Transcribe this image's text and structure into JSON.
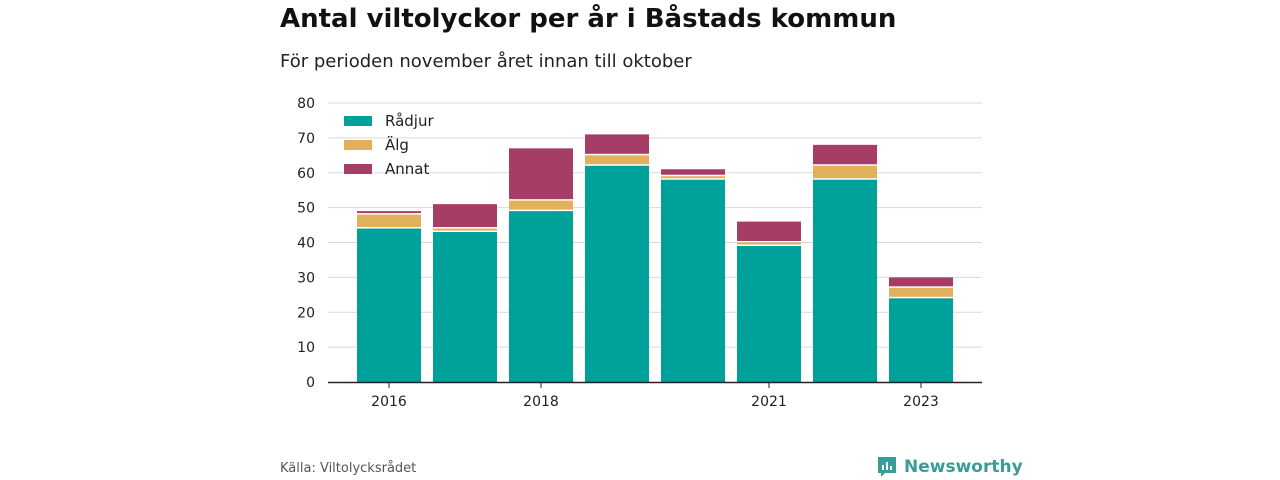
{
  "header": {
    "title": "Antal viltolyckor per år i Båstads kommun",
    "subtitle": "För perioden november året innan till oktober"
  },
  "footer": {
    "source": "Källa: Viltolycksrådet",
    "brand": "Newsworthy"
  },
  "colors": {
    "radjur": "#00a19a",
    "alg": "#e0b05a",
    "annat": "#a63d66",
    "grid": "#d9d9d9",
    "axis": "#222222",
    "brand": "#3a9c96"
  },
  "chart_data": {
    "type": "bar",
    "stacked": true,
    "categories": [
      "2016",
      "2017",
      "2018",
      "2019",
      "2020",
      "2021",
      "2022",
      "2023"
    ],
    "x_tick_labels": [
      "2016",
      "",
      "2018",
      "",
      "",
      "2021",
      "",
      "2023"
    ],
    "series": [
      {
        "name": "Rådjur",
        "values": [
          44,
          43,
          49,
          62,
          58,
          39,
          58,
          24
        ]
      },
      {
        "name": "Älg",
        "values": [
          4,
          1,
          3,
          3,
          1,
          1,
          4,
          3
        ]
      },
      {
        "name": "Annat",
        "values": [
          1,
          7,
          15,
          6,
          2,
          6,
          6,
          3
        ]
      }
    ],
    "ylim": [
      0,
      80
    ],
    "yticks": [
      0,
      10,
      20,
      30,
      40,
      50,
      60,
      70,
      80
    ],
    "grid": true,
    "legend_position": "top-left"
  }
}
